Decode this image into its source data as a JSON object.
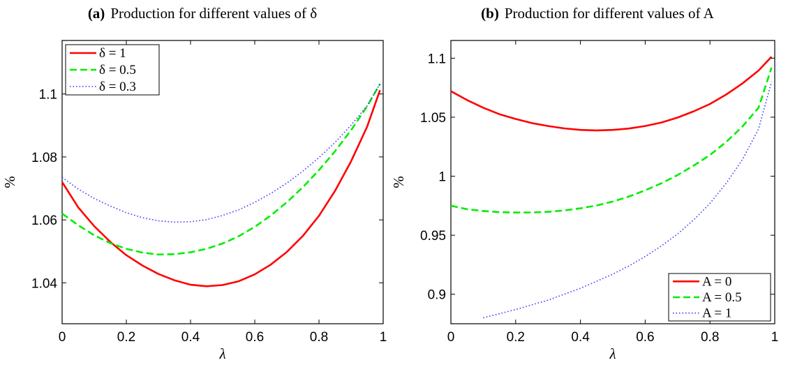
{
  "chart_data": [
    {
      "type": "line",
      "title_tag": "(a)",
      "title": "Production for different values of δ",
      "xlabel": "λ",
      "ylabel": "%",
      "xlim": [
        0,
        1
      ],
      "ylim": [
        1.027,
        1.117
      ],
      "xticks": [
        "0",
        "0.2",
        "0.4",
        "0.6",
        "0.8",
        "1"
      ],
      "xtick_values": [
        0,
        0.2,
        0.4,
        0.6,
        0.8,
        1
      ],
      "yticks": [
        "1.04",
        "1.06",
        "1.08",
        "1.1"
      ],
      "ytick_values": [
        1.04,
        1.06,
        1.08,
        1.1
      ],
      "grid": false,
      "legend_position": "top-left",
      "series": [
        {
          "name": "δ = 1",
          "color": "#ff0000",
          "style": "solid",
          "x": [
            0,
            0.05,
            0.1,
            0.15,
            0.2,
            0.25,
            0.3,
            0.35,
            0.4,
            0.45,
            0.5,
            0.55,
            0.6,
            0.65,
            0.7,
            0.75,
            0.8,
            0.85,
            0.9,
            0.95,
            0.99
          ],
          "y": [
            1.072,
            1.064,
            1.058,
            1.053,
            1.0488,
            1.0455,
            1.0428,
            1.0408,
            1.0394,
            1.0389,
            1.0393,
            1.0405,
            1.0427,
            1.0458,
            1.0498,
            1.0549,
            1.0613,
            1.0692,
            1.0786,
            1.0896,
            1.1012
          ]
        },
        {
          "name": "δ = 0.5",
          "color": "#00ee00",
          "style": "dashed",
          "x": [
            0,
            0.05,
            0.1,
            0.15,
            0.2,
            0.25,
            0.3,
            0.35,
            0.4,
            0.45,
            0.5,
            0.55,
            0.6,
            0.65,
            0.7,
            0.75,
            0.8,
            0.85,
            0.9,
            0.95,
            0.99
          ],
          "y": [
            1.062,
            1.0583,
            1.0551,
            1.0526,
            1.0508,
            1.0496,
            1.049,
            1.0491,
            1.0497,
            1.0508,
            1.0525,
            1.0548,
            1.0578,
            1.0614,
            1.0656,
            1.0704,
            1.0758,
            1.0818,
            1.0885,
            1.0961,
            1.1032
          ]
        },
        {
          "name": "δ = 0.3",
          "color": "#3333ff",
          "style": "dotted",
          "x": [
            0,
            0.05,
            0.1,
            0.15,
            0.2,
            0.25,
            0.3,
            0.35,
            0.4,
            0.45,
            0.5,
            0.55,
            0.6,
            0.65,
            0.7,
            0.75,
            0.8,
            0.85,
            0.9,
            0.95,
            0.99
          ],
          "y": [
            1.0735,
            1.0698,
            1.0668,
            1.0644,
            1.0623,
            1.0607,
            1.0597,
            1.0593,
            1.0594,
            1.0601,
            1.0614,
            1.0632,
            1.0656,
            1.0684,
            1.0717,
            1.0755,
            1.0798,
            1.0846,
            1.0901,
            1.0962,
            1.1032
          ]
        }
      ]
    },
    {
      "type": "line",
      "title_tag": "(b)",
      "title": "Production for different values of A",
      "xlabel": "λ",
      "ylabel": "%",
      "xlim": [
        0,
        1
      ],
      "ylim": [
        0.875,
        1.115
      ],
      "xticks": [
        "0",
        "0.2",
        "0.4",
        "0.6",
        "0.8",
        "1"
      ],
      "xtick_values": [
        0,
        0.2,
        0.4,
        0.6,
        0.8,
        1
      ],
      "yticks": [
        "0.9",
        "0.95",
        "1",
        "1.05",
        "1.1"
      ],
      "ytick_values": [
        0.9,
        0.95,
        1,
        1.05,
        1.1
      ],
      "grid": false,
      "legend_position": "bottom-right",
      "series": [
        {
          "name": "A = 0",
          "color": "#ff0000",
          "style": "solid",
          "x": [
            0,
            0.05,
            0.1,
            0.15,
            0.2,
            0.25,
            0.3,
            0.35,
            0.4,
            0.45,
            0.5,
            0.55,
            0.6,
            0.65,
            0.7,
            0.75,
            0.8,
            0.85,
            0.9,
            0.95,
            0.99
          ],
          "y": [
            1.072,
            1.0645,
            1.058,
            1.0525,
            1.0485,
            1.045,
            1.0425,
            1.0405,
            1.0392,
            1.0388,
            1.0392,
            1.0404,
            1.0425,
            1.0455,
            1.0497,
            1.055,
            1.0612,
            1.0692,
            1.0785,
            1.0895,
            1.1012
          ]
        },
        {
          "name": "A = 0.5",
          "color": "#00ee00",
          "style": "dashed",
          "x": [
            0,
            0.05,
            0.1,
            0.15,
            0.2,
            0.25,
            0.3,
            0.35,
            0.4,
            0.45,
            0.5,
            0.55,
            0.6,
            0.65,
            0.7,
            0.75,
            0.8,
            0.85,
            0.9,
            0.95,
            0.99
          ],
          "y": [
            0.975,
            0.972,
            0.9705,
            0.9695,
            0.9692,
            0.9693,
            0.9698,
            0.971,
            0.9728,
            0.9752,
            0.9785,
            0.9828,
            0.988,
            0.994,
            1.001,
            1.009,
            1.018,
            1.029,
            1.042,
            1.058,
            1.092
          ]
        },
        {
          "name": "A = 1",
          "color": "#3333ff",
          "style": "dotted",
          "x": [
            0.1,
            0.15,
            0.2,
            0.25,
            0.3,
            0.35,
            0.4,
            0.45,
            0.5,
            0.55,
            0.6,
            0.65,
            0.7,
            0.75,
            0.8,
            0.85,
            0.9,
            0.95,
            0.99
          ],
          "y": [
            0.88,
            0.8835,
            0.887,
            0.891,
            0.895,
            0.9,
            0.905,
            0.911,
            0.917,
            0.924,
            0.932,
            0.941,
            0.951,
            0.963,
            0.977,
            0.994,
            1.014,
            1.04,
            1.08
          ]
        }
      ]
    }
  ]
}
